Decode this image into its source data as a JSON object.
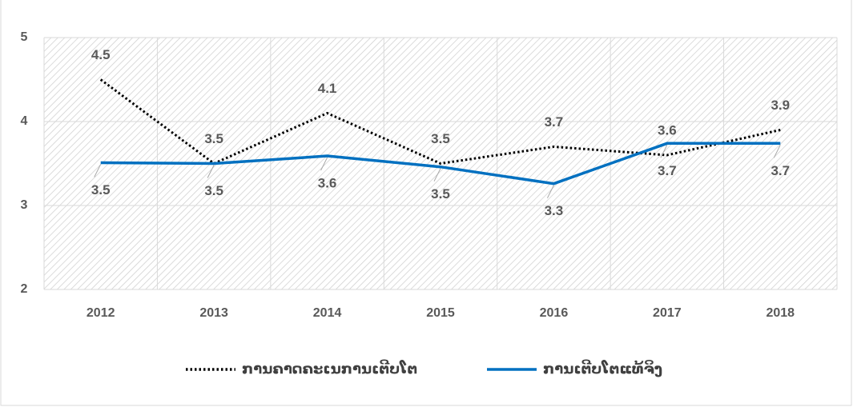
{
  "chart_data": {
    "type": "line",
    "categories": [
      "2012",
      "2013",
      "2014",
      "2015",
      "2016",
      "2017",
      "2018"
    ],
    "series": [
      {
        "name": "ການຄາດຄະເນການເຕີບໂຕ",
        "color": "#000000",
        "dash": "dotted",
        "values": [
          4.5,
          3.5,
          4.1,
          3.5,
          3.7,
          3.6,
          3.9
        ]
      },
      {
        "name": "ການເຕີບໂຕແທ້ຈິງ",
        "color": "#0070c0",
        "dash": "solid",
        "values": [
          3.51,
          3.5,
          3.59,
          3.46,
          3.26,
          3.74,
          3.74
        ],
        "value_labels": [
          "3.5",
          "3.5",
          "3.6",
          "3.5",
          "3.3",
          "3.7",
          "3.7"
        ]
      }
    ],
    "ylim": [
      2,
      5
    ],
    "yticks": [
      2,
      3,
      4,
      5
    ],
    "grid": true,
    "legend": "bottom"
  }
}
